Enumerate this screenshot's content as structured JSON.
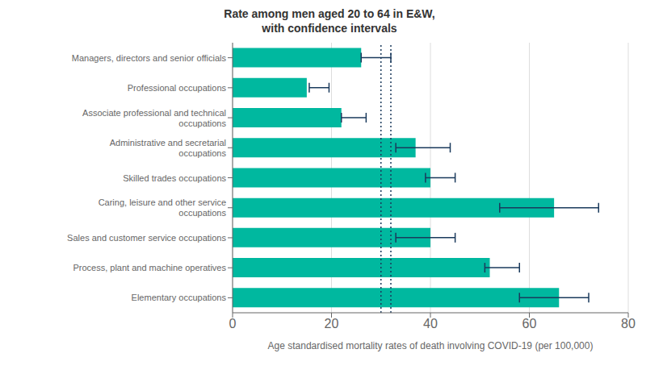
{
  "chart_data": {
    "type": "bar",
    "orientation": "horizontal",
    "title": "Rate among men aged 20 to 64 in E&W,\nwith confidence intervals",
    "x_label": "Age standardised mortality rates of death involving COVID-19 (per 100,000)",
    "categories": [
      "Managers, directors and senior officials",
      "Professional occupations",
      "Associate professional and technical\noccupations",
      "Administrative and secretarial\noccupations",
      "Skilled trades occupations",
      "Caring, leisure and other service\noccupations",
      "Sales and customer service occupations",
      "Process, plant and machine operatives",
      "Elementary occupations"
    ],
    "values": [
      26,
      15,
      22,
      37,
      40,
      65,
      40,
      52,
      66
    ],
    "color": "#00b89f",
    "error_bars": {
      "centers": [
        28,
        17,
        24,
        37,
        41,
        60,
        37,
        54,
        63
      ],
      "minus": [
        2,
        1.5,
        2,
        4,
        2,
        6,
        4,
        3,
        5
      ],
      "plus": [
        4,
        2.5,
        3,
        7,
        4,
        14,
        8,
        4,
        9
      ],
      "color": "#1a3a5c"
    },
    "reference_lines": [
      {
        "x": 30,
        "color": "#1a3a5c",
        "line_style": "dotted"
      },
      {
        "x": 32,
        "color": "#1a3a5c",
        "line_style": "dotted"
      }
    ],
    "xlim": [
      0,
      80
    ],
    "xticks": [
      0,
      20,
      40,
      60,
      80
    ],
    "grid": true
  }
}
